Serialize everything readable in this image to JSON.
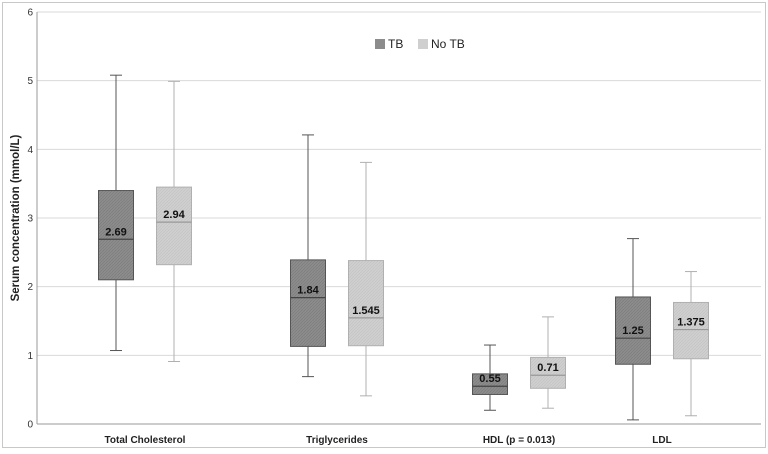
{
  "chart_data": {
    "type": "boxplot",
    "title": "",
    "xlabel": "",
    "ylabel": "Serum concentration (mmol/L)",
    "ylim": [
      0,
      6
    ],
    "yticks": [
      0,
      1,
      2,
      3,
      4,
      5,
      6
    ],
    "grid": "horizontal",
    "legend_position": "top-center",
    "categories": [
      "Total Cholesterol",
      "Triglycerides",
      "HDL (p = 0.013)",
      "LDL"
    ],
    "series": [
      {
        "name": "TB",
        "color": "#8c8c8c",
        "boxes": [
          {
            "min": 1.07,
            "q1": 2.1,
            "median": 2.69,
            "q3": 3.4,
            "max": 5.08,
            "label": "2.69"
          },
          {
            "min": 0.69,
            "q1": 1.13,
            "median": 1.84,
            "q3": 2.39,
            "max": 4.21,
            "label": "1.84"
          },
          {
            "min": 0.2,
            "q1": 0.43,
            "median": 0.55,
            "q3": 0.73,
            "max": 1.15,
            "label": "0.55"
          },
          {
            "min": 0.06,
            "q1": 0.87,
            "median": 1.25,
            "q3": 1.85,
            "max": 2.7,
            "label": "1.25"
          }
        ]
      },
      {
        "name": "No TB",
        "color": "#cfcfcf",
        "boxes": [
          {
            "min": 0.91,
            "q1": 2.32,
            "median": 2.94,
            "q3": 3.45,
            "max": 4.99,
            "label": "2.94"
          },
          {
            "min": 0.41,
            "q1": 1.14,
            "median": 1.545,
            "q3": 2.38,
            "max": 3.81,
            "label": "1.545"
          },
          {
            "min": 0.23,
            "q1": 0.52,
            "median": 0.71,
            "q3": 0.97,
            "max": 1.56,
            "label": "0.71"
          },
          {
            "min": 0.12,
            "q1": 0.95,
            "median": 1.375,
            "q3": 1.77,
            "max": 2.22,
            "label": "1.375"
          }
        ]
      }
    ]
  }
}
